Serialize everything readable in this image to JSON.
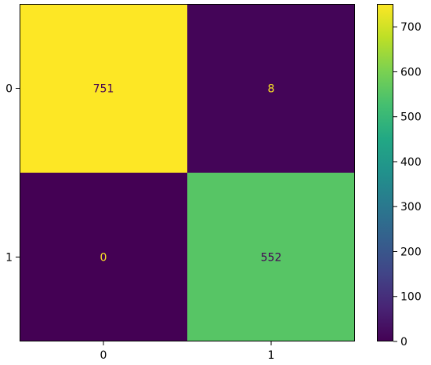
{
  "chart_data": {
    "type": "heatmap",
    "title": "",
    "xlabel": "",
    "ylabel": "",
    "x_categories": [
      "0",
      "1"
    ],
    "y_categories": [
      "0",
      "1"
    ],
    "matrix": [
      [
        751,
        8
      ],
      [
        0,
        552
      ]
    ],
    "cell_labels": [
      [
        "751",
        "8"
      ],
      [
        "0",
        "552"
      ]
    ],
    "colormap": "viridis",
    "vmin": 0,
    "vmax": 751,
    "colorbar": {
      "ticks": [
        0,
        100,
        200,
        300,
        400,
        500,
        600,
        700
      ],
      "tick_labels": [
        "0",
        "100",
        "200",
        "300",
        "400",
        "500",
        "600",
        "700"
      ]
    },
    "label_colors": {
      "on_dark": "#fde725",
      "on_light": "#440154"
    },
    "grid": false
  }
}
